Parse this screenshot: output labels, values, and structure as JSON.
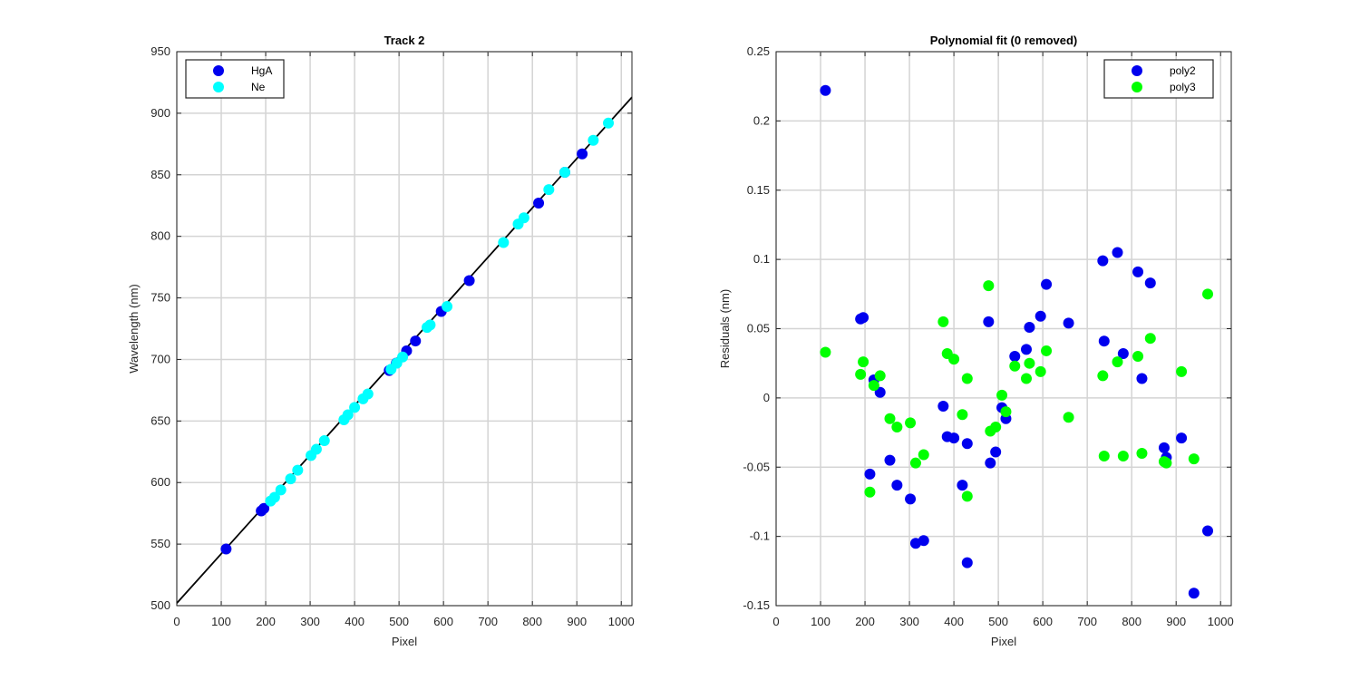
{
  "chart_data": [
    {
      "type": "scatter",
      "title": "Track 2",
      "xlabel": "Pixel",
      "ylabel": "Wavelength (nm)",
      "xlim": [
        0,
        1024
      ],
      "ylim": [
        500,
        950
      ],
      "xticks": [
        "0",
        "100",
        "200",
        "300",
        "400",
        "500",
        "600",
        "700",
        "800",
        "900",
        "1000"
      ],
      "yticks": [
        "500",
        "550",
        "600",
        "650",
        "700",
        "750",
        "800",
        "850",
        "900",
        "950"
      ],
      "grid": true,
      "legend_position": "top-left",
      "fit_line": {
        "x": [
          0,
          1024
        ],
        "y": [
          502,
          913
        ]
      },
      "series": [
        {
          "name": "HgA",
          "color": "#0000ee",
          "points": [
            [
              111,
              546
            ],
            [
              190,
              577
            ],
            [
              196,
              579
            ],
            [
              478,
              691
            ],
            [
              494,
              697
            ],
            [
              517,
              707
            ],
            [
              537,
              715
            ],
            [
              595,
              739
            ],
            [
              658,
              764
            ],
            [
              814,
              827
            ],
            [
              873,
              852
            ],
            [
              912,
              867
            ]
          ]
        },
        {
          "name": "Ne",
          "color": "#00ffff",
          "points": [
            [
              211,
              585
            ],
            [
              220,
              588
            ],
            [
              234,
              594
            ],
            [
              256,
              603
            ],
            [
              272,
              610
            ],
            [
              302,
              622
            ],
            [
              314,
              627
            ],
            [
              332,
              634
            ],
            [
              376,
              651
            ],
            [
              385,
              655
            ],
            [
              400,
              661
            ],
            [
              419,
              668
            ],
            [
              430,
              672
            ],
            [
              482,
              692
            ],
            [
              495,
              697
            ],
            [
              508,
              702
            ],
            [
              563,
              726
            ],
            [
              570,
              728
            ],
            [
              608,
              743
            ],
            [
              735,
              795
            ],
            [
              768,
              810
            ],
            [
              781,
              815
            ],
            [
              837,
              838
            ],
            [
              873,
              852
            ],
            [
              937,
              878
            ],
            [
              971,
              892
            ]
          ]
        }
      ]
    },
    {
      "type": "scatter",
      "title": "Polynomial fit  (0 removed)",
      "xlabel": "Pixel",
      "ylabel": "Residuals (nm)",
      "xlim": [
        0,
        1024
      ],
      "ylim": [
        -0.15,
        0.25
      ],
      "xticks": [
        "0",
        "100",
        "200",
        "300",
        "400",
        "500",
        "600",
        "700",
        "800",
        "900",
        "1000"
      ],
      "yticks": [
        "-0.15",
        "-0.1",
        "-0.05",
        "0",
        "0.05",
        "0.1",
        "0.15",
        "0.2",
        "0.25"
      ],
      "grid": true,
      "legend_position": "top-right",
      "series": [
        {
          "name": "poly2",
          "color": "#0000ee",
          "points": [
            [
              111,
              0.222
            ],
            [
              190,
              0.057
            ],
            [
              196,
              0.058
            ],
            [
              211,
              -0.055
            ],
            [
              220,
              0.013
            ],
            [
              234,
              0.004
            ],
            [
              256,
              -0.045
            ],
            [
              272,
              -0.063
            ],
            [
              302,
              -0.073
            ],
            [
              314,
              -0.105
            ],
            [
              332,
              -0.103
            ],
            [
              376,
              -0.006
            ],
            [
              385,
              -0.028
            ],
            [
              400,
              -0.029
            ],
            [
              419,
              -0.063
            ],
            [
              430,
              -0.119
            ],
            [
              430,
              -0.033
            ],
            [
              478,
              0.055
            ],
            [
              482,
              -0.047
            ],
            [
              494,
              -0.039
            ],
            [
              508,
              -0.007
            ],
            [
              517,
              -0.015
            ],
            [
              537,
              0.03
            ],
            [
              563,
              0.035
            ],
            [
              570,
              0.051
            ],
            [
              595,
              0.059
            ],
            [
              608,
              0.082
            ],
            [
              658,
              0.054
            ],
            [
              735,
              0.099
            ],
            [
              738,
              0.041
            ],
            [
              768,
              0.105
            ],
            [
              781,
              0.032
            ],
            [
              814,
              0.091
            ],
            [
              823,
              0.014
            ],
            [
              842,
              0.083
            ],
            [
              873,
              -0.036
            ],
            [
              878,
              -0.043
            ],
            [
              912,
              -0.029
            ],
            [
              940,
              -0.141
            ],
            [
              971,
              -0.096
            ]
          ]
        },
        {
          "name": "poly3",
          "color": "#00ff00",
          "points": [
            [
              111,
              0.033
            ],
            [
              190,
              0.017
            ],
            [
              196,
              0.026
            ],
            [
              211,
              -0.068
            ],
            [
              220,
              0.009
            ],
            [
              234,
              0.016
            ],
            [
              256,
              -0.015
            ],
            [
              272,
              -0.021
            ],
            [
              302,
              -0.018
            ],
            [
              314,
              -0.047
            ],
            [
              332,
              -0.041
            ],
            [
              376,
              0.055
            ],
            [
              385,
              0.032
            ],
            [
              400,
              0.028
            ],
            [
              419,
              -0.012
            ],
            [
              430,
              0.014
            ],
            [
              430,
              -0.071
            ],
            [
              478,
              0.081
            ],
            [
              482,
              -0.024
            ],
            [
              494,
              -0.021
            ],
            [
              508,
              0.002
            ],
            [
              517,
              -0.01
            ],
            [
              537,
              0.023
            ],
            [
              563,
              0.014
            ],
            [
              570,
              0.025
            ],
            [
              595,
              0.019
            ],
            [
              608,
              0.034
            ],
            [
              658,
              -0.014
            ],
            [
              735,
              0.016
            ],
            [
              738,
              -0.042
            ],
            [
              768,
              0.026
            ],
            [
              781,
              -0.042
            ],
            [
              814,
              0.03
            ],
            [
              823,
              -0.04
            ],
            [
              842,
              0.043
            ],
            [
              873,
              -0.046
            ],
            [
              878,
              -0.047
            ],
            [
              912,
              0.019
            ],
            [
              940,
              -0.044
            ],
            [
              971,
              0.075
            ]
          ]
        }
      ]
    }
  ]
}
